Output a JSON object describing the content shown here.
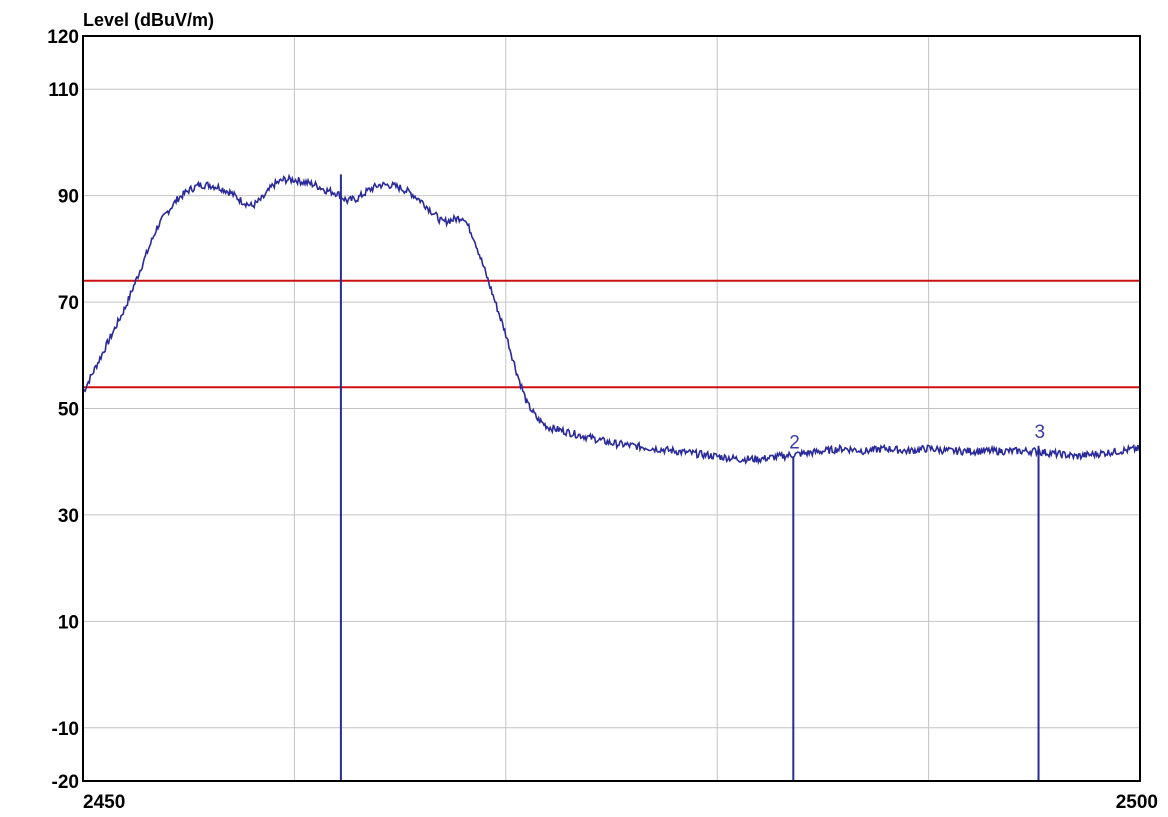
{
  "chart_data": {
    "type": "line",
    "title": "",
    "ylabel": "Level (dBuV/m)",
    "xlabel": "",
    "xlim": [
      2450,
      2500
    ],
    "ylim": [
      -20,
      120
    ],
    "y_ticks": [
      "120",
      "110",
      "90",
      "70",
      "50",
      "30",
      "10",
      "-10",
      "-20"
    ],
    "x_ticks": [
      "2450",
      "2500"
    ],
    "grid": true,
    "colors": {
      "trace": "#2a2a9a",
      "limit": "#cc1111",
      "grid": "#c4c4c4",
      "marker_label": "#3a3aa8"
    },
    "series": [
      {
        "x": [
          2450,
          2450.5,
          2451,
          2451.5,
          2452,
          2452.5,
          2453,
          2453.5,
          2454,
          2454.5,
          2455,
          2455.5,
          2456,
          2456.5,
          2457,
          2457.5,
          2458,
          2458.5,
          2459,
          2459.5,
          2460,
          2460.5,
          2461,
          2461.5,
          2462,
          2462.5,
          2463,
          2463.5,
          2464,
          2464.5,
          2465,
          2465.5,
          2466,
          2466.5,
          2467,
          2467.5,
          2468,
          2468.5,
          2469,
          2469.5,
          2470,
          2470.5,
          2471,
          2471.5,
          2472,
          2472.5,
          2473,
          2473.5,
          2474,
          2474.5,
          2475,
          2476,
          2477,
          2478,
          2479,
          2480,
          2481,
          2482,
          2483,
          2484,
          2485,
          2486,
          2487,
          2488,
          2489,
          2490,
          2491,
          2492,
          2493,
          2494,
          2495,
          2496,
          2497,
          2498,
          2499,
          2500
        ],
        "values": [
          53,
          57,
          61,
          65,
          69,
          74,
          79,
          84,
          87,
          89.5,
          91,
          92,
          92,
          91.5,
          90.5,
          89,
          88,
          89.5,
          92,
          93,
          93,
          92.5,
          92,
          91,
          90.5,
          89,
          89.5,
          91,
          92,
          92,
          91.5,
          90.5,
          89,
          87,
          85,
          85.5,
          86,
          82,
          76,
          70,
          64,
          57,
          51,
          48,
          46.5,
          46,
          45.5,
          45,
          44.5,
          44,
          43.5,
          43,
          42.5,
          42,
          41.5,
          41,
          40.5,
          40.5,
          41,
          41.5,
          42,
          42.5,
          42,
          42.5,
          42,
          42.5,
          42,
          42,
          42,
          42,
          42,
          41.5,
          41,
          41.5,
          42,
          42.5
        ]
      }
    ],
    "limits": [
      74,
      54
    ],
    "markers": [
      {
        "label": "",
        "x": 2462.2,
        "level": 94
      },
      {
        "label": "2",
        "x": 2483.6,
        "level": 41
      },
      {
        "label": "3",
        "x": 2495.2,
        "level": 43
      }
    ]
  }
}
